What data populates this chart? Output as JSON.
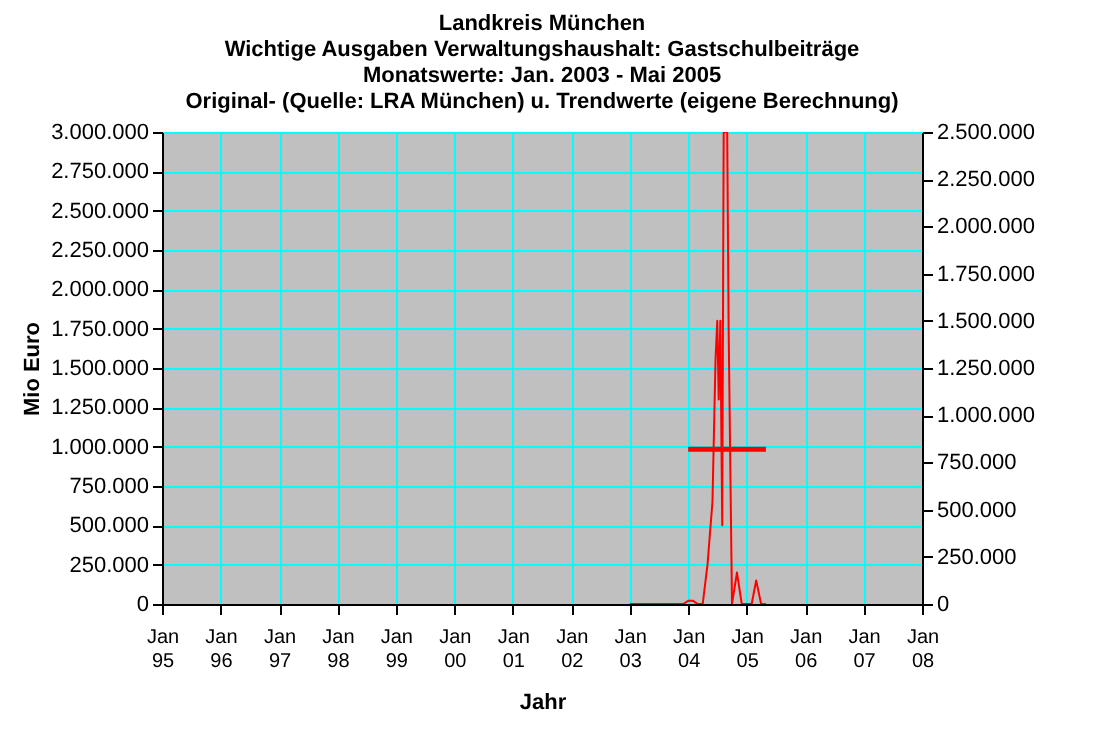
{
  "chart_data": {
    "type": "line",
    "title": "Landkreis München",
    "subtitle": [
      "Wichtige Ausgaben Verwaltungshaushalt: Gastschulbeiträge",
      "Monatswerte: Jan. 2003 - Mai 2005",
      "Original- (Quelle: LRA München) u. Trendwerte (eigene Berechnung)"
    ],
    "xlabel": "Jahr",
    "ylabel": "Mio Euro",
    "series": [
      {
        "color": "#ff0000",
        "x": [
          "2003-01-01",
          "2003-06-01",
          "2003-12-01",
          "2004-01-01",
          "2004-02-01",
          "2004-03-01",
          "2004-04-01",
          "2004-05-01",
          "2004-06-01",
          "2004-06-20",
          "2004-07-01",
          "2004-07-10",
          "2004-07-20",
          "2004-08-01",
          "2004-08-10",
          "2004-09-01",
          "2004-09-10",
          "2004-10-01",
          "2004-11-01",
          "2004-12-01",
          "2005-01-01",
          "2005-02-01",
          "2005-03-01",
          "2005-04-01",
          "2005-05-01"
        ],
        "values": [
          0,
          0,
          0,
          20000,
          20000,
          0,
          0,
          250000,
          650000,
          1550000,
          1800000,
          1300000,
          1800000,
          500000,
          3000000,
          3000000,
          1750000,
          0,
          200000,
          0,
          0,
          0,
          150000,
          0,
          0
        ]
      },
      {
        "type": "line",
        "axis": "y2",
        "color": "#ff0000",
        "x": [
          "2004-01-01",
          "2005-05-01"
        ],
        "values": [
          820000,
          820000
        ]
      }
    ],
    "xlim": [
      "1995-01-01",
      "2008-01-01"
    ],
    "xticks": [
      {
        "value": "1995-01-01",
        "label": "Jan 95"
      },
      {
        "value": "1996-01-01",
        "label": "Jan 96"
      },
      {
        "value": "1997-01-01",
        "label": "Jan 97"
      },
      {
        "value": "1998-01-01",
        "label": "Jan 98"
      },
      {
        "value": "1999-01-01",
        "label": "Jan 99"
      },
      {
        "value": "2000-01-01",
        "label": "Jan 00"
      },
      {
        "value": "2001-01-01",
        "label": "Jan 01"
      },
      {
        "value": "2002-01-01",
        "label": "Jan 02"
      },
      {
        "value": "2003-01-01",
        "label": "Jan 03"
      },
      {
        "value": "2004-01-01",
        "label": "Jan 04"
      },
      {
        "value": "2005-01-01",
        "label": "Jan 05"
      },
      {
        "value": "2006-01-01",
        "label": "Jan 06"
      },
      {
        "value": "2007-01-01",
        "label": "Jan 07"
      },
      {
        "value": "2008-01-01",
        "label": "Jan 08"
      }
    ],
    "ylim": [
      0,
      3000000
    ],
    "yticks": [
      {
        "value": 0,
        "label": "0"
      },
      {
        "value": 250000,
        "label": "250.000"
      },
      {
        "value": 500000,
        "label": "500.000"
      },
      {
        "value": 750000,
        "label": "750.000"
      },
      {
        "value": 1000000,
        "label": "1.000.000"
      },
      {
        "value": 1250000,
        "label": "1.250.000"
      },
      {
        "value": 1500000,
        "label": "1.500.000"
      },
      {
        "value": 1750000,
        "label": "1.750.000"
      },
      {
        "value": 2000000,
        "label": "2.000.000"
      },
      {
        "value": 2250000,
        "label": "2.250.000"
      },
      {
        "value": 2500000,
        "label": "2.500.000"
      },
      {
        "value": 2750000,
        "label": "2.750.000"
      },
      {
        "value": 3000000,
        "label": "3.000.000"
      }
    ],
    "y2lim": [
      0,
      2500000
    ],
    "y2ticks": [
      {
        "value": 0,
        "label": "0"
      },
      {
        "value": 250000,
        "label": "250.000"
      },
      {
        "value": 500000,
        "label": "500.000"
      },
      {
        "value": 750000,
        "label": "750.000"
      },
      {
        "value": 1000000,
        "label": "1.000.000"
      },
      {
        "value": 1250000,
        "label": "1.250.000"
      },
      {
        "value": 1500000,
        "label": "1.500.000"
      },
      {
        "value": 1750000,
        "label": "1.750.000"
      },
      {
        "value": 2000000,
        "label": "2.000.000"
      },
      {
        "value": 2250000,
        "label": "2.250.000"
      },
      {
        "value": 2500000,
        "label": "2.500.000"
      }
    ],
    "grid": true,
    "marker": "none",
    "line_style": "solid"
  }
}
